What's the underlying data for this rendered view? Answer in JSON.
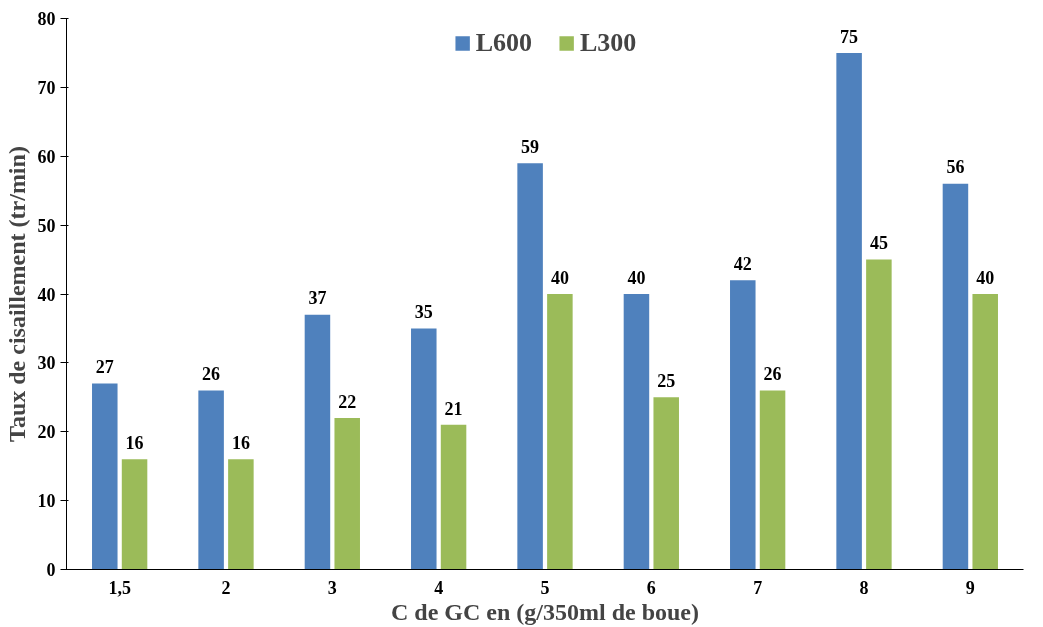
{
  "chart_data": {
    "type": "bar",
    "xlabel": "C de GC en (g/350ml de boue)",
    "ylabel": "Taux de cisaillement (tr/min)",
    "categories": [
      "1,5",
      "2",
      "3",
      "4",
      "5",
      "6",
      "7",
      "8",
      "9"
    ],
    "series": [
      {
        "name": "L600",
        "color": "#4f81bd",
        "values": [
          27,
          26,
          37,
          35,
          59,
          40,
          42,
          75,
          56
        ]
      },
      {
        "name": "L300",
        "color": "#9bbb59",
        "values": [
          16,
          16,
          22,
          21,
          40,
          25,
          26,
          45,
          40
        ]
      }
    ],
    "ylim": [
      0,
      80
    ],
    "yticks": [
      0,
      10,
      20,
      30,
      40,
      50,
      60,
      70,
      80
    ],
    "grid": false,
    "legend": "top",
    "data_labels": true
  }
}
